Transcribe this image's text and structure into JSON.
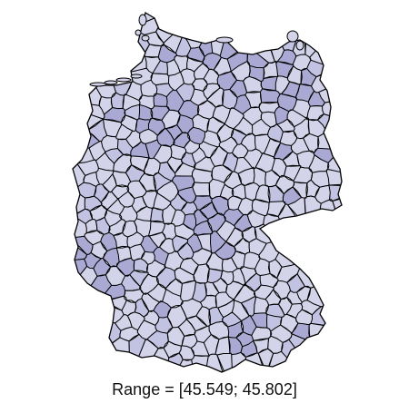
{
  "map": {
    "caption": "Range = [45.549; 45.802]",
    "fill_light": "#d3d3ea",
    "fill_mid": "#c2c2e2",
    "fill_dark": "#a9a9d4",
    "border_color": "#000000"
  }
}
